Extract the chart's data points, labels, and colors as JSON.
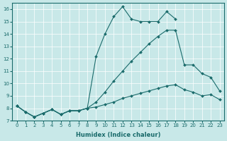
{
  "xlabel": "Humidex (Indice chaleur)",
  "xlim": [
    -0.5,
    23.5
  ],
  "ylim": [
    7,
    16.5
  ],
  "xticks": [
    0,
    1,
    2,
    3,
    4,
    5,
    6,
    7,
    8,
    9,
    10,
    11,
    12,
    13,
    14,
    15,
    16,
    17,
    18,
    19,
    20,
    21,
    22,
    23
  ],
  "yticks": [
    7,
    8,
    9,
    10,
    11,
    12,
    13,
    14,
    15,
    16
  ],
  "bg_color": "#c8e8e8",
  "line_color": "#1a6b6b",
  "curves": [
    {
      "x": [
        0,
        1,
        2,
        3,
        4,
        5,
        6,
        7,
        8,
        9,
        10,
        11,
        12,
        13,
        14,
        15,
        16,
        17,
        18,
        19,
        20,
        21,
        22
      ],
      "y": [
        8.2,
        7.7,
        7.3,
        7.6,
        7.9,
        7.5,
        7.8,
        7.8,
        8.0,
        12.2,
        14.0,
        15.4,
        16.2,
        15.2,
        15.0,
        15.0,
        15.0,
        15.8,
        15.2,
        null,
        null,
        null,
        null
      ],
      "peak_x": [
        0,
        1,
        2,
        3,
        4,
        5,
        6,
        7,
        8,
        9,
        10,
        11,
        12,
        13,
        14,
        15,
        16,
        17,
        18
      ],
      "peak_y": [
        8.2,
        7.7,
        7.3,
        7.6,
        7.9,
        7.5,
        7.8,
        7.8,
        8.0,
        12.2,
        14.0,
        15.4,
        16.2,
        15.2,
        15.0,
        15.0,
        15.0,
        15.8,
        15.2
      ]
    },
    {
      "x": [
        0,
        1,
        2,
        3,
        4,
        5,
        6,
        7,
        8,
        9,
        10,
        11,
        12,
        13,
        14,
        15,
        16,
        17,
        18,
        19,
        20,
        21,
        22,
        23
      ],
      "y": [
        8.2,
        7.7,
        7.3,
        7.6,
        7.9,
        7.5,
        7.8,
        7.8,
        8.0,
        8.5,
        9.3,
        10.2,
        11.0,
        11.8,
        12.5,
        13.2,
        13.8,
        14.3,
        14.3,
        11.5,
        11.5,
        10.8,
        10.5,
        9.4
      ]
    },
    {
      "x": [
        0,
        1,
        2,
        3,
        4,
        5,
        6,
        7,
        8,
        9,
        10,
        11,
        12,
        13,
        14,
        15,
        16,
        17,
        18,
        19,
        20,
        21,
        22,
        23
      ],
      "y": [
        8.2,
        7.7,
        7.3,
        7.6,
        7.9,
        7.5,
        7.8,
        7.8,
        8.0,
        8.1,
        8.3,
        8.5,
        8.8,
        9.0,
        9.2,
        9.4,
        9.6,
        9.8,
        9.9,
        9.5,
        9.3,
        9.0,
        9.1,
        8.7
      ]
    }
  ]
}
